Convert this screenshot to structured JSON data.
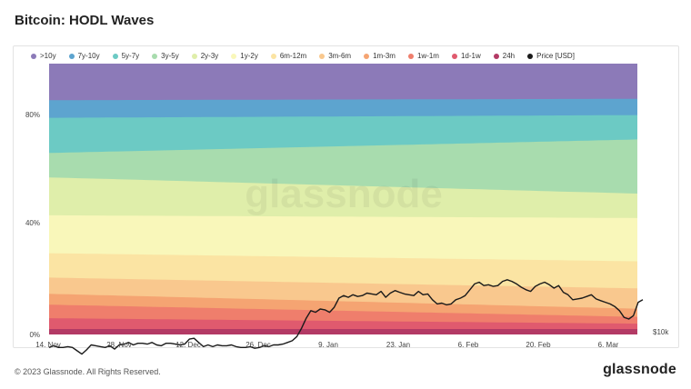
{
  "title": "Bitcoin: HODL Waves",
  "footer": {
    "copyright": "© 2023 Glassnode. All Rights Reserved.",
    "brand": "glassnode",
    "watermark": "glassnode"
  },
  "chart_data": {
    "type": "area",
    "stacking": "percent",
    "title": "Bitcoin: HODL Waves",
    "x_ticks": [
      "14. Nov",
      "28. Nov",
      "12. Dec",
      "26. Dec",
      "9. Jan",
      "23. Jan",
      "6. Feb",
      "20. Feb",
      "6. Mar"
    ],
    "y_left_ticks": [
      "0%",
      "40%",
      "80%"
    ],
    "y_right_ticks": [
      "$10k"
    ],
    "legend_position": "top",
    "grid": false,
    "series": [
      {
        "name": ">10y",
        "color": "#8c7ab8",
        "start": 13.5,
        "end": 13.0
      },
      {
        "name": "7y-10y",
        "color": "#5da4cf",
        "start": 6.5,
        "end": 6.0
      },
      {
        "name": "5y-7y",
        "color": "#6ccac4",
        "start": 13.0,
        "end": 9.0
      },
      {
        "name": "3y-5y",
        "color": "#a8dcae",
        "start": 9.0,
        "end": 20.0
      },
      {
        "name": "2y-3y",
        "color": "#dfeeaa",
        "start": 14.0,
        "end": 9.0
      },
      {
        "name": "1y-2y",
        "color": "#f9f7ba",
        "start": 14.0,
        "end": 16.0
      },
      {
        "name": "6m-12m",
        "color": "#fbe4a3",
        "start": 9.0,
        "end": 10.0
      },
      {
        "name": "3m-6m",
        "color": "#f9c88e",
        "start": 6.0,
        "end": 7.5
      },
      {
        "name": "1m-3m",
        "color": "#f5a472",
        "start": 4.0,
        "end": 3.0
      },
      {
        "name": "1w-1m",
        "color": "#ef7e6c",
        "start": 5.0,
        "end": 2.5
      },
      {
        "name": "1d-1w",
        "color": "#e05a6e",
        "start": 4.0,
        "end": 2.0
      },
      {
        "name": "24h",
        "color": "#b33a65",
        "start": 2.0,
        "end": 2.0
      }
    ],
    "price": {
      "name": "Price [USD]",
      "color": "#1a1a1a",
      "values": [
        16.6,
        16.8,
        16.6,
        16.6,
        16.7,
        16.6,
        16.2,
        15.8,
        16.3,
        16.9,
        16.8,
        16.7,
        16.6,
        16.8,
        16.4,
        16.9,
        17.0,
        17.2,
        16.9,
        17.1,
        17.1,
        17.0,
        17.2,
        16.9,
        16.8,
        17.1,
        17.1,
        17.0,
        16.9,
        17.0,
        17.6,
        17.7,
        17.2,
        16.7,
        16.9,
        16.7,
        16.9,
        16.8,
        16.8,
        16.9,
        16.7,
        16.6,
        16.6,
        16.7,
        16.5,
        16.6,
        16.8,
        16.7,
        16.9,
        16.9,
        17.0,
        17.2,
        17.4,
        17.9,
        18.9,
        20.1,
        21.0,
        20.8,
        21.2,
        21.1,
        20.8,
        21.4,
        22.5,
        22.8,
        22.6,
        22.9,
        22.7,
        22.8,
        23.1,
        23.0,
        22.9,
        23.3,
        22.6,
        23.1,
        23.4,
        23.2,
        23.0,
        22.9,
        22.8,
        23.3,
        22.9,
        23.0,
        22.3,
        21.8,
        21.9,
        21.7,
        21.8,
        22.3,
        22.5,
        22.8,
        23.5,
        24.2,
        24.4,
        24.0,
        24.1,
        23.9,
        24.0,
        24.5,
        24.7,
        24.5,
        24.2,
        23.8,
        23.5,
        23.3,
        23.9,
        24.2,
        24.4,
        24.1,
        23.7,
        24.0,
        23.2,
        22.9,
        22.3,
        22.4,
        22.5,
        22.7,
        22.9,
        22.4,
        22.2,
        22.0,
        21.8,
        21.5,
        21.0,
        20.2,
        20.0,
        20.4,
        22.0,
        22.3
      ]
    }
  }
}
